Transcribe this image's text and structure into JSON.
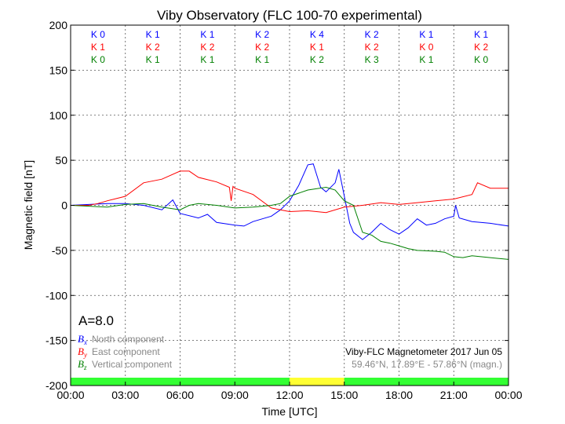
{
  "chart_data": {
    "type": "line",
    "title": "Viby Observatory (FLC 100-70 experimental)",
    "xlabel": "Time [UTC]",
    "ylabel": "Magnetic field [nT]",
    "xlim": [
      0,
      24
    ],
    "ylim": [
      -200,
      200
    ],
    "grid": true,
    "y_ticks": [
      200,
      150,
      100,
      50,
      0,
      -50,
      -100,
      -150,
      -200
    ],
    "x_ticks": [
      0,
      3,
      6,
      9,
      12,
      15,
      18,
      21,
      24
    ],
    "x_tick_labels": [
      "00:00",
      "03:00",
      "06:00",
      "09:00",
      "12:00",
      "15:00",
      "18:00",
      "21:00",
      "00:00"
    ],
    "series": [
      {
        "name": "North component",
        "symbol": "B",
        "sub": "x",
        "color": "#0000ff",
        "x": [
          0,
          1,
          2,
          3,
          4,
          5,
          5.6,
          6,
          7,
          7.5,
          8,
          9,
          9.5,
          10,
          11,
          11.5,
          12,
          12.5,
          13,
          13.3,
          13.7,
          14,
          14.5,
          14.7,
          15,
          15.3,
          15.5,
          16,
          16.5,
          17,
          17.5,
          18,
          18.5,
          19,
          19.5,
          20,
          20.5,
          21,
          21.1,
          21.3,
          22,
          23,
          24
        ],
        "y": [
          0,
          1,
          2,
          2,
          0,
          -5,
          6,
          -9,
          -14,
          -10,
          -19,
          -22,
          -23,
          -18,
          -12,
          -5,
          5,
          22,
          45,
          46,
          20,
          15,
          25,
          40,
          10,
          -20,
          -30,
          -38,
          -30,
          -20,
          -27,
          -32,
          -25,
          -15,
          -22,
          -20,
          -15,
          -12,
          0,
          -14,
          -18,
          -20,
          -23
        ]
      },
      {
        "name": "East component",
        "symbol": "B",
        "sub": "y",
        "color": "#ff0000",
        "x": [
          0,
          1,
          1.5,
          2,
          3,
          4,
          5,
          6,
          6.5,
          7,
          8,
          8.7,
          8.8,
          8.9,
          9,
          10,
          11,
          11.5,
          12,
          13,
          14,
          15,
          16,
          17,
          18,
          19,
          20,
          21,
          22,
          22.3,
          23,
          24
        ],
        "y": [
          0,
          0,
          2,
          5,
          10,
          25,
          29,
          38,
          38,
          31,
          26,
          20,
          5,
          21,
          19,
          12,
          -3,
          -5,
          -7,
          -6,
          -8,
          -2,
          0,
          3,
          1,
          3,
          5,
          7,
          12,
          25,
          19,
          19
        ]
      },
      {
        "name": "Vertical component",
        "symbol": "B",
        "sub": "z",
        "color": "#008000",
        "x": [
          0,
          1,
          2,
          3,
          4,
          5,
          6,
          6.5,
          7,
          8,
          9,
          10,
          11,
          11.5,
          12,
          13,
          14,
          14.5,
          15,
          15.5,
          16,
          16.5,
          17,
          17.5,
          18,
          18.5,
          19,
          20,
          20.5,
          21,
          21.5,
          22,
          23,
          24
        ],
        "y": [
          0,
          -1,
          -2,
          1,
          2,
          -2,
          -5,
          0,
          2,
          0,
          -3,
          -2,
          0,
          2,
          10,
          17,
          20,
          17,
          5,
          0,
          -30,
          -33,
          -40,
          -42,
          -45,
          -48,
          -50,
          -51,
          -52,
          -57,
          -58,
          -56,
          -58,
          -60
        ]
      }
    ],
    "k_index": {
      "blue": [
        "K 0",
        "K 1",
        "K 1",
        "K 2",
        "K 4",
        "K 2",
        "K 1",
        "K 1"
      ],
      "red": [
        "K 1",
        "K 2",
        "K 2",
        "K 2",
        "K 1",
        "K 2",
        "K 0",
        "K 2"
      ],
      "green": [
        "K 0",
        "K 1",
        "K 1",
        "K 1",
        "K 2",
        "K 3",
        "K 1",
        "K 0"
      ]
    },
    "a_index": "A=8.0",
    "status_bar": [
      {
        "from": 0,
        "to": 12,
        "color": "#33ff33"
      },
      {
        "from": 12,
        "to": 15,
        "color": "#ffff33"
      },
      {
        "from": 15,
        "to": 24,
        "color": "#33ff33"
      }
    ],
    "annotation_line1": "Viby-FLC Magnetometer 2017 Jun 05",
    "annotation_line2": "59.46°N, 17.89°E - 57.86°N (magn.)"
  }
}
